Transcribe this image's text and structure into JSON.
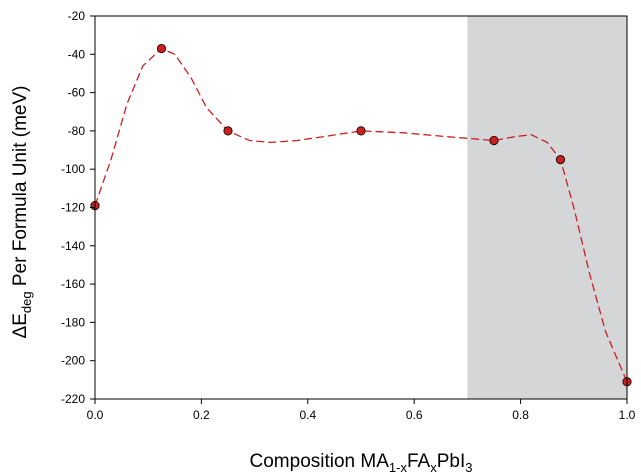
{
  "chart_data": {
    "type": "line",
    "xlabel_parts": {
      "base": "Composition MA",
      "sub1": "1-x",
      "mid": "FA",
      "sub2": "x",
      "tail": "PbI",
      "sub3": "3"
    },
    "ylabel_parts": {
      "delta": "ΔE",
      "sub": "deg",
      "rest": " Per Formula Unit (meV)"
    },
    "xlim": [
      0.0,
      1.0
    ],
    "ylim": [
      -220,
      -20
    ],
    "xticks": [
      0.0,
      0.2,
      0.4,
      0.6,
      0.8,
      1.0
    ],
    "xtick_labels": [
      "0.0",
      "0.2",
      "0.4",
      "0.6",
      "0.8",
      "1.0"
    ],
    "yticks": [
      -20,
      -40,
      -60,
      -80,
      -100,
      -120,
      -140,
      -160,
      -180,
      -200,
      -220
    ],
    "ytick_labels": [
      "-20",
      "-40",
      "-60",
      "-80",
      "-100",
      "-120",
      "-140",
      "-160",
      "-180",
      "-200",
      "-220"
    ],
    "shaded_region_x": [
      0.7,
      1.0
    ],
    "shaded_color": "#d5d6d8",
    "line_color": "#cc1f1f",
    "marker_color": "#cc1f1f",
    "points": [
      {
        "x": 0.0,
        "y": -119
      },
      {
        "x": 0.125,
        "y": -37
      },
      {
        "x": 0.25,
        "y": -80
      },
      {
        "x": 0.5,
        "y": -80
      },
      {
        "x": 0.75,
        "y": -85
      },
      {
        "x": 0.875,
        "y": -95
      },
      {
        "x": 1.0,
        "y": -211
      }
    ],
    "curve": [
      {
        "x": 0.0,
        "y": -119
      },
      {
        "x": 0.03,
        "y": -95
      },
      {
        "x": 0.06,
        "y": -66
      },
      {
        "x": 0.09,
        "y": -46
      },
      {
        "x": 0.125,
        "y": -37
      },
      {
        "x": 0.15,
        "y": -40
      },
      {
        "x": 0.18,
        "y": -52
      },
      {
        "x": 0.21,
        "y": -68
      },
      {
        "x": 0.25,
        "y": -80
      },
      {
        "x": 0.29,
        "y": -85
      },
      {
        "x": 0.33,
        "y": -86
      },
      {
        "x": 0.38,
        "y": -85
      },
      {
        "x": 0.43,
        "y": -83
      },
      {
        "x": 0.5,
        "y": -80
      },
      {
        "x": 0.58,
        "y": -81
      },
      {
        "x": 0.66,
        "y": -83
      },
      {
        "x": 0.75,
        "y": -85
      },
      {
        "x": 0.79,
        "y": -83
      },
      {
        "x": 0.82,
        "y": -82
      },
      {
        "x": 0.85,
        "y": -86
      },
      {
        "x": 0.875,
        "y": -95
      },
      {
        "x": 0.9,
        "y": -120
      },
      {
        "x": 0.93,
        "y": -155
      },
      {
        "x": 0.96,
        "y": -185
      },
      {
        "x": 1.0,
        "y": -211
      }
    ],
    "grid": false
  }
}
